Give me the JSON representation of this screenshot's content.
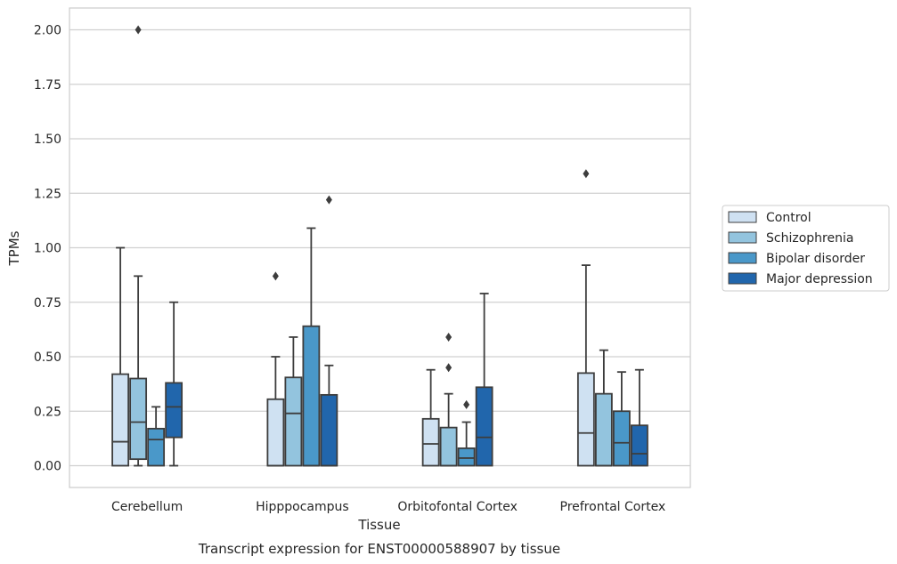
{
  "caption": "Transcript expression for ENST00000588907 by tissue",
  "chart_data": {
    "type": "box",
    "xlabel": "Tissue",
    "ylabel": "TPMs",
    "ylim": [
      -0.1,
      2.1
    ],
    "yticks": [
      0.0,
      0.25,
      0.5,
      0.75,
      1.0,
      1.25,
      1.5,
      1.75,
      2.0
    ],
    "ytick_labels": [
      "0.00",
      "0.25",
      "0.50",
      "0.75",
      "1.00",
      "1.25",
      "1.50",
      "1.75",
      "2.00"
    ],
    "grid": true,
    "legend_position": "right",
    "categories": [
      "Cerebellum",
      "Hipppocampus",
      "Orbitofontal Cortex",
      "Prefrontal Cortex"
    ],
    "series": [
      {
        "name": "Control",
        "color": "#cfe1f2",
        "boxes": [
          {
            "whisker_low": 0.0,
            "q1": 0.0,
            "median": 0.11,
            "q3": 0.42,
            "whisker_high": 1.0,
            "outliers": []
          },
          {
            "whisker_low": 0.0,
            "q1": 0.0,
            "median": 0.0,
            "q3": 0.305,
            "whisker_high": 0.5,
            "outliers": [
              0.87
            ]
          },
          {
            "whisker_low": 0.0,
            "q1": 0.0,
            "median": 0.1,
            "q3": 0.215,
            "whisker_high": 0.44,
            "outliers": []
          },
          {
            "whisker_low": 0.0,
            "q1": 0.0,
            "median": 0.15,
            "q3": 0.425,
            "whisker_high": 0.92,
            "outliers": [
              1.34
            ]
          }
        ]
      },
      {
        "name": "Schizophrenia",
        "color": "#93c4de",
        "boxes": [
          {
            "whisker_low": 0.0,
            "q1": 0.03,
            "median": 0.2,
            "q3": 0.4,
            "whisker_high": 0.87,
            "outliers": [
              2.0
            ]
          },
          {
            "whisker_low": 0.0,
            "q1": 0.0,
            "median": 0.24,
            "q3": 0.405,
            "whisker_high": 0.59,
            "outliers": []
          },
          {
            "whisker_low": 0.0,
            "q1": 0.0,
            "median": 0.0,
            "q3": 0.175,
            "whisker_high": 0.33,
            "outliers": [
              0.45,
              0.59
            ]
          },
          {
            "whisker_low": 0.0,
            "q1": 0.0,
            "median": 0.0,
            "q3": 0.33,
            "whisker_high": 0.53,
            "outliers": []
          }
        ]
      },
      {
        "name": "Bipolar disorder",
        "color": "#4a98c9",
        "boxes": [
          {
            "whisker_low": 0.0,
            "q1": 0.0,
            "median": 0.12,
            "q3": 0.17,
            "whisker_high": 0.27,
            "outliers": []
          },
          {
            "whisker_low": 0.0,
            "q1": 0.0,
            "median": 0.0,
            "q3": 0.64,
            "whisker_high": 1.09,
            "outliers": []
          },
          {
            "whisker_low": 0.0,
            "q1": 0.0,
            "median": 0.035,
            "q3": 0.08,
            "whisker_high": 0.2,
            "outliers": [
              0.28
            ]
          },
          {
            "whisker_low": 0.0,
            "q1": 0.0,
            "median": 0.105,
            "q3": 0.25,
            "whisker_high": 0.43,
            "outliers": []
          }
        ]
      },
      {
        "name": "Major depression",
        "color": "#2166ac",
        "boxes": [
          {
            "whisker_low": 0.0,
            "q1": 0.13,
            "median": 0.27,
            "q3": 0.38,
            "whisker_high": 0.75,
            "outliers": []
          },
          {
            "whisker_low": 0.0,
            "q1": 0.0,
            "median": 0.0,
            "q3": 0.325,
            "whisker_high": 0.46,
            "outliers": [
              1.22
            ]
          },
          {
            "whisker_low": 0.0,
            "q1": 0.0,
            "median": 0.13,
            "q3": 0.36,
            "whisker_high": 0.79,
            "outliers": []
          },
          {
            "whisker_low": 0.0,
            "q1": 0.0,
            "median": 0.055,
            "q3": 0.185,
            "whisker_high": 0.44,
            "outliers": []
          }
        ]
      }
    ]
  }
}
